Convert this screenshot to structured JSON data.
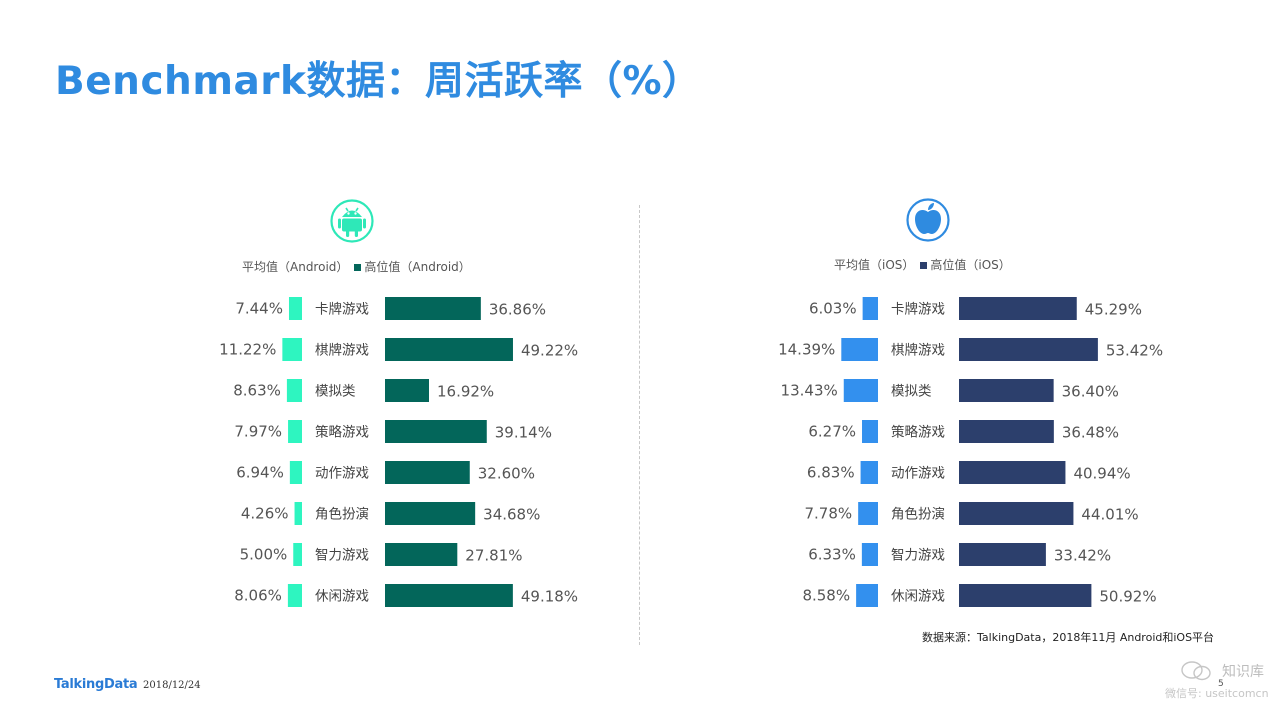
{
  "title": "Benchmark数据：周活跃率（%）",
  "source_note": "数据来源：TalkingData，2018年11月 Android和iOS平台",
  "footer": {
    "brand": "TalkingData",
    "date": "2018/12/24",
    "page": "5"
  },
  "watermark": {
    "name": "知识库",
    "id": "微信号: useitcomcn"
  },
  "colors": {
    "title": "#2f8be0",
    "android_avg": "#2ef5c0",
    "android_high": "#03665a",
    "ios_avg": "#3390ee",
    "ios_high": "#2c3f6c",
    "android_icon": "#2ee8b8",
    "ios_icon": "#2f8be0"
  },
  "chart_data": [
    {
      "type": "bar",
      "platform": "Android",
      "icon": "android-icon",
      "legend": [
        "平均值（Android）",
        "高位值（Android）"
      ],
      "categories": [
        "卡牌游戏",
        "棋牌游戏",
        "模拟类",
        "策略游戏",
        "动作游戏",
        "角色扮演",
        "智力游戏",
        "休闲游戏"
      ],
      "series": [
        {
          "name": "平均值（Android）",
          "values": [
            7.44,
            11.22,
            8.63,
            7.97,
            6.94,
            4.26,
            5.0,
            8.06
          ],
          "labels": [
            "7.44%",
            "11.22%",
            "8.63%",
            "7.97%",
            "6.94%",
            "4.26%",
            "5.00%",
            "8.06%"
          ]
        },
        {
          "name": "高位值（Android）",
          "values": [
            36.86,
            49.22,
            16.92,
            39.14,
            32.6,
            34.68,
            27.81,
            49.18
          ],
          "labels": [
            "36.86%",
            "49.22%",
            "16.92%",
            "39.14%",
            "32.60%",
            "34.68%",
            "27.81%",
            "49.18%"
          ]
        }
      ],
      "unit": "%"
    },
    {
      "type": "bar",
      "platform": "iOS",
      "icon": "apple-icon",
      "legend": [
        "平均值（iOS）",
        "高位值（iOS）"
      ],
      "categories": [
        "卡牌游戏",
        "棋牌游戏",
        "模拟类",
        "策略游戏",
        "动作游戏",
        "角色扮演",
        "智力游戏",
        "休闲游戏"
      ],
      "series": [
        {
          "name": "平均值（iOS）",
          "values": [
            6.03,
            14.39,
            13.43,
            6.27,
            6.83,
            7.78,
            6.33,
            8.58
          ],
          "labels": [
            "6.03%",
            "14.39%",
            "13.43%",
            "6.27%",
            "6.83%",
            "7.78%",
            "6.33%",
            "8.58%"
          ]
        },
        {
          "name": "高位值（iOS）",
          "values": [
            45.29,
            53.42,
            36.4,
            36.48,
            40.94,
            44.01,
            33.42,
            50.92
          ],
          "labels": [
            "45.29%",
            "53.42%",
            "36.40%",
            "36.48%",
            "40.94%",
            "44.01%",
            "33.42%",
            "50.92%"
          ]
        }
      ],
      "unit": "%"
    }
  ]
}
